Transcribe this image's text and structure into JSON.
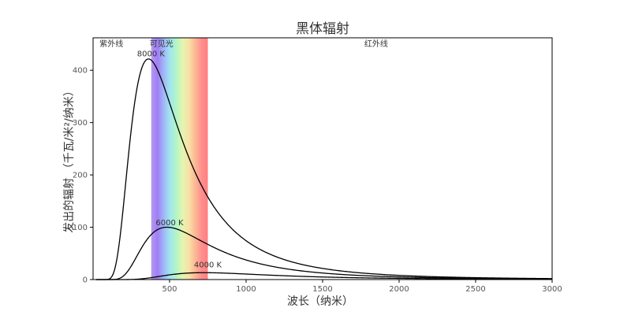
{
  "chart_data": {
    "type": "line",
    "title": "黑体辐射",
    "xlabel": "波长（纳米）",
    "ylabel": "发出的辐射 （千瓦/米²/纳米）",
    "xlim": [
      0,
      3000
    ],
    "ylim": [
      0,
      462
    ],
    "xticks": [
      500,
      1000,
      1500,
      2000,
      2500,
      3000
    ],
    "yticks": [
      0,
      100,
      200,
      300,
      400
    ],
    "grid": false,
    "regions": [
      {
        "name": "ultraviolet",
        "label": "紫外线",
        "label_at": 120
      },
      {
        "name": "visible",
        "label": "可见光",
        "label_at": 447,
        "range": [
          380,
          750
        ]
      },
      {
        "name": "infrared",
        "label": "红外线",
        "label_at": 1850
      }
    ],
    "spectrum_colors": [
      "#b49af0",
      "#a07ef5",
      "#9fb7f7",
      "#a2e6ee",
      "#b3f5c6",
      "#e4f5b0",
      "#f8e0a6",
      "#fcb893",
      "#ff8f8f",
      "#ff7f7f"
    ],
    "series": [
      {
        "name": "8000 K",
        "temperature": 8000,
        "color": "#000000",
        "label_at": [
          378,
          427
        ]
      },
      {
        "name": "6000 K",
        "temperature": 6000,
        "color": "#000000",
        "label_at": [
          500,
          104
        ]
      },
      {
        "name": "4000 K",
        "temperature": 4000,
        "color": "#000000",
        "label_at": [
          750,
          23
        ]
      }
    ]
  }
}
